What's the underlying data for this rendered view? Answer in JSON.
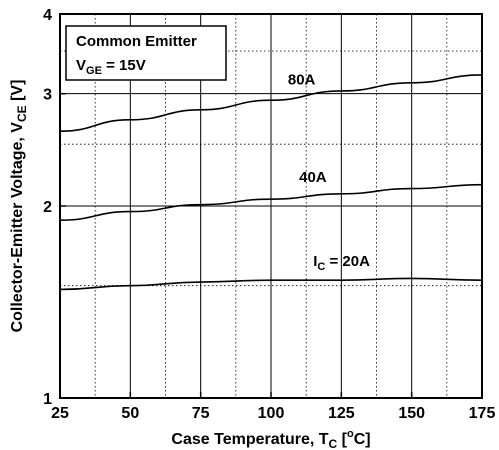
{
  "chart_data": {
    "type": "line",
    "xlabel": {
      "main": "Case Temperature, T",
      "sub": "C",
      "open": " [",
      "sup": "o",
      "close": "C]"
    },
    "ylabel": {
      "main": "Collector-Emitter Voltage, V",
      "sub": "CE",
      "close": " [V]"
    },
    "xlim": [
      25,
      175
    ],
    "ylim": [
      1,
      4
    ],
    "y_scale": "log",
    "x_ticks": [
      25,
      50,
      75,
      100,
      125,
      150,
      175
    ],
    "y_ticks": [
      1,
      2,
      3,
      4
    ],
    "grid": true,
    "legend": {
      "line1": "Common Emitter",
      "line2_main": "V",
      "line2_sub": "GE",
      "line2_rest": " = 15V",
      "placement": "top-left"
    },
    "series": [
      {
        "name": "80A",
        "x": [
          25,
          50,
          75,
          100,
          125,
          150,
          175
        ],
        "y": [
          2.62,
          2.73,
          2.83,
          2.93,
          3.03,
          3.12,
          3.21
        ]
      },
      {
        "name": "40A",
        "x": [
          25,
          50,
          75,
          100,
          125,
          150,
          175
        ],
        "y": [
          1.9,
          1.96,
          2.01,
          2.05,
          2.09,
          2.13,
          2.16
        ]
      },
      {
        "name": "I_C = 20A",
        "label_main": "I",
        "label_sub": "C",
        "label_rest": " = 20A",
        "x": [
          25,
          50,
          75,
          100,
          125,
          150,
          175
        ],
        "y": [
          1.48,
          1.5,
          1.52,
          1.53,
          1.53,
          1.54,
          1.53
        ]
      }
    ]
  }
}
